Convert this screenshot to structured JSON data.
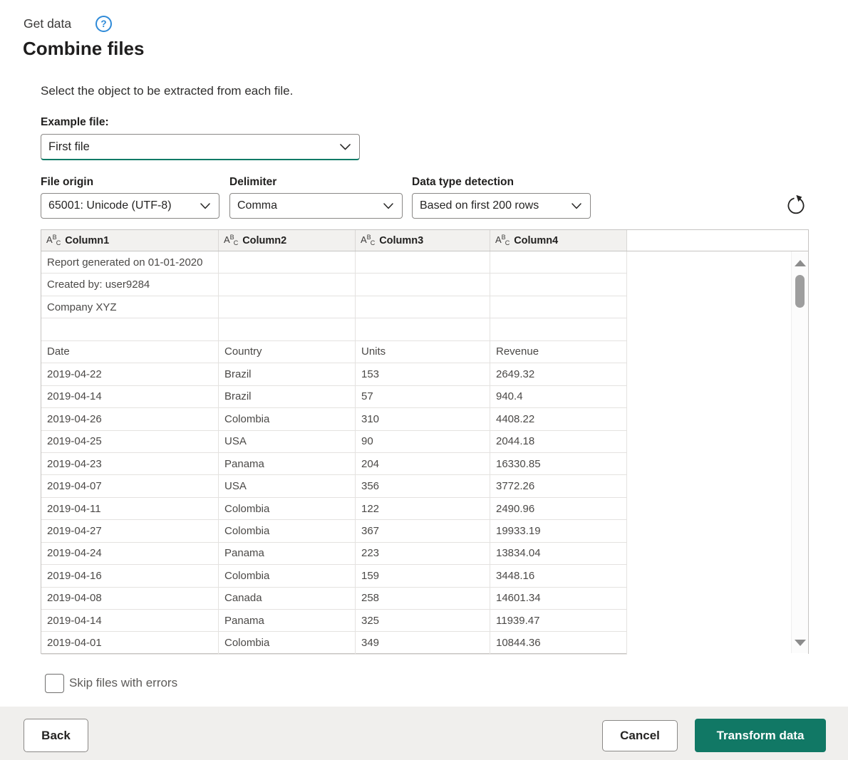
{
  "header": {
    "breadcrumb": "Get data",
    "help": "?",
    "title": "Combine files"
  },
  "instruction": "Select the object to be extracted from each file.",
  "example": {
    "label": "Example file:",
    "value": "First file"
  },
  "options": [
    {
      "label": "File origin",
      "value": "65001: Unicode (UTF-8)"
    },
    {
      "label": "Delimiter",
      "value": "Comma"
    },
    {
      "label": "Data type detection",
      "value": "Based on first 200 rows"
    }
  ],
  "table": {
    "type_icon": {
      "a": "A",
      "b": "B",
      "c": "C"
    },
    "columns": [
      {
        "type": "text",
        "label": "Column1"
      },
      {
        "type": "text",
        "label": "Column2"
      },
      {
        "type": "text",
        "label": "Column3"
      },
      {
        "type": "text",
        "label": "Column4"
      }
    ],
    "rows": [
      [
        "Report generated on 01-01-2020",
        "",
        "",
        ""
      ],
      [
        "Created by: user9284",
        "",
        "",
        ""
      ],
      [
        "Company XYZ",
        "",
        "",
        ""
      ],
      [
        "",
        "",
        "",
        ""
      ],
      [
        "Date",
        "Country",
        "Units",
        "Revenue"
      ],
      [
        "2019-04-22",
        "Brazil",
        "153",
        "2649.32"
      ],
      [
        "2019-04-14",
        "Brazil",
        "57",
        "940.4"
      ],
      [
        "2019-04-26",
        "Colombia",
        "310",
        "4408.22"
      ],
      [
        "2019-04-25",
        "USA",
        "90",
        "2044.18"
      ],
      [
        "2019-04-23",
        "Panama",
        "204",
        "16330.85"
      ],
      [
        "2019-04-07",
        "USA",
        "356",
        "3772.26"
      ],
      [
        "2019-04-11",
        "Colombia",
        "122",
        "2490.96"
      ],
      [
        "2019-04-27",
        "Colombia",
        "367",
        "19933.19"
      ],
      [
        "2019-04-24",
        "Panama",
        "223",
        "13834.04"
      ],
      [
        "2019-04-16",
        "Colombia",
        "159",
        "3448.16"
      ],
      [
        "2019-04-08",
        "Canada",
        "258",
        "14601.34"
      ],
      [
        "2019-04-14",
        "Panama",
        "325",
        "11939.47"
      ],
      [
        "2019-04-01",
        "Colombia",
        "349",
        "10844.36"
      ]
    ]
  },
  "skip": {
    "label": "Skip files with errors",
    "checked": false
  },
  "footer": {
    "back": "Back",
    "cancel": "Cancel",
    "transform": "Transform data"
  },
  "colors": {
    "accent_teal": "#117865",
    "help_blue": "#2e8ad8",
    "header_bg": "#f2f1ef",
    "footer_bg": "#f0efed"
  }
}
